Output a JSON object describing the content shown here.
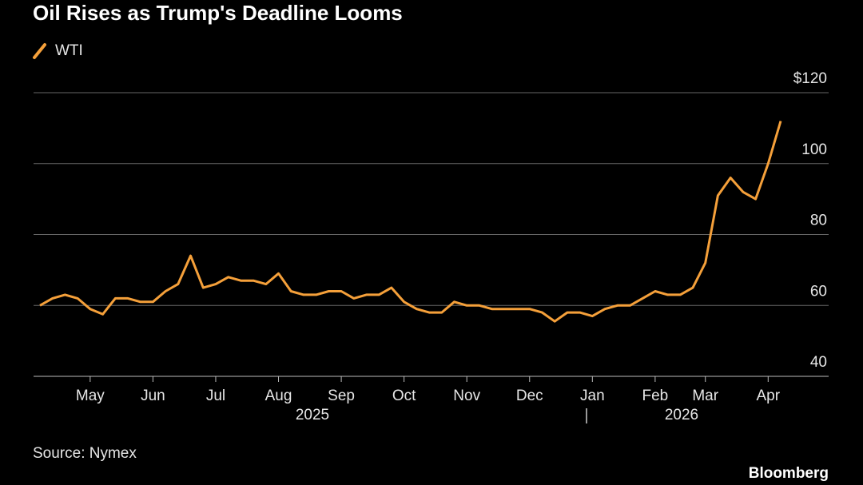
{
  "chart_data": {
    "type": "line",
    "title": "Oil Rises as Trump's Deadline Looms",
    "source": "Source: Nymex",
    "brand": "Bloomberg",
    "categories": [
      null,
      null,
      null,
      null,
      "May",
      null,
      null,
      null,
      null,
      "Jun",
      null,
      null,
      null,
      null,
      "Jul",
      null,
      null,
      null,
      null,
      "Aug",
      null,
      null,
      null,
      null,
      "Sep",
      null,
      null,
      null,
      null,
      "Oct",
      null,
      null,
      null,
      null,
      "Nov",
      null,
      null,
      null,
      null,
      "Dec",
      null,
      null,
      null,
      null,
      "Jan",
      null,
      null,
      null,
      null,
      "Feb",
      null,
      null,
      null,
      "Mar",
      null,
      null,
      null,
      null,
      "Apr",
      null
    ],
    "year_labels": [
      "2025",
      "2026"
    ],
    "series": [
      {
        "name": "WTI",
        "color": "#f5a03a",
        "values": [
          60,
          62,
          63,
          62,
          59,
          57.5,
          62,
          62,
          61,
          61,
          64,
          66,
          74,
          65,
          66,
          68,
          67,
          67,
          66,
          69,
          64,
          63,
          63,
          64,
          64,
          62,
          63,
          63,
          65,
          61,
          59,
          58,
          58,
          61,
          60,
          60,
          59,
          59,
          59,
          59,
          58,
          55.5,
          58,
          58,
          57,
          59,
          60,
          60,
          62,
          64,
          63,
          63,
          65,
          72,
          91,
          96,
          92,
          90,
          100,
          112
        ]
      }
    ],
    "ylim": [
      40,
      120
    ],
    "yticks": [
      40,
      60,
      80,
      100,
      {
        "value": 120,
        "label": "$120"
      }
    ],
    "grid": true
  }
}
